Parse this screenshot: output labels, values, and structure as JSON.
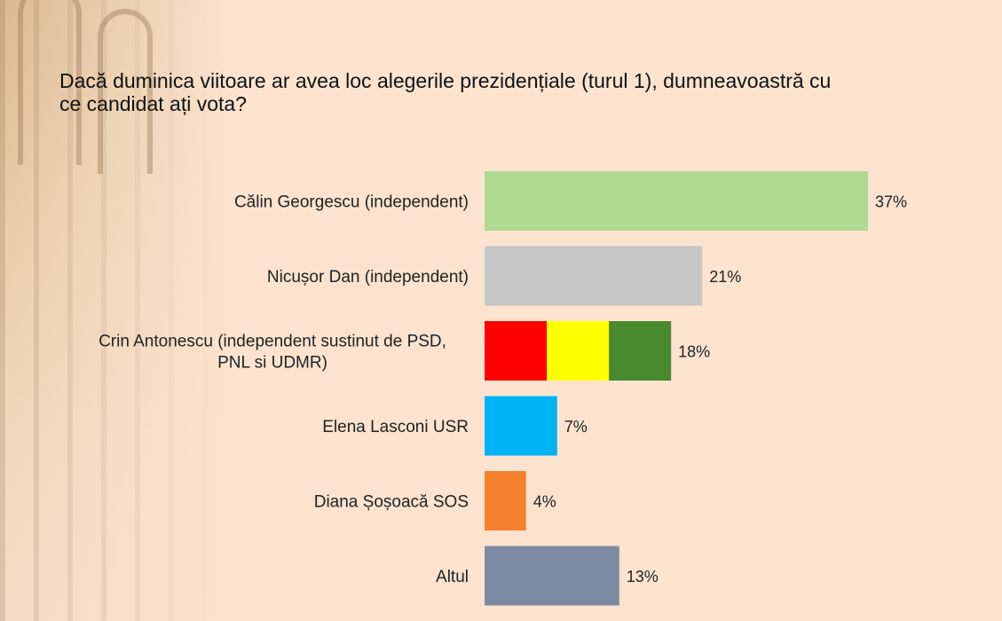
{
  "chart_data": {
    "type": "bar",
    "orientation": "horizontal",
    "title": "Dacă duminica viitoare ar avea loc alegerile prezidențiale (turul 1), dumneavoastră cu ce candidat ați vota?",
    "categories": [
      [
        "Călin Georgescu (independent)"
      ],
      [
        "Nicușor Dan (independent)"
      ],
      [
        "Crin Antonescu (independent sustinut de PSD,",
        "PNL si UDMR)"
      ],
      [
        "Elena Lasconi USR"
      ],
      [
        "Diana Șoșoacă SOS"
      ],
      [
        "Altul"
      ]
    ],
    "values": [
      37,
      21,
      18,
      7,
      4,
      13
    ],
    "value_labels": [
      "37%",
      "21%",
      "18%",
      "7%",
      "4%",
      "13%"
    ],
    "colors": [
      [
        "#aed991"
      ],
      [
        "#c6c6c6"
      ],
      [
        "#ff0000",
        "#ffff00",
        "#4a8a2e"
      ],
      [
        "#00b3f5"
      ],
      [
        "#f5802e"
      ],
      [
        "#7c8ba1"
      ]
    ],
    "xlim": [
      0,
      37
    ],
    "grid": false,
    "legend": "none"
  }
}
